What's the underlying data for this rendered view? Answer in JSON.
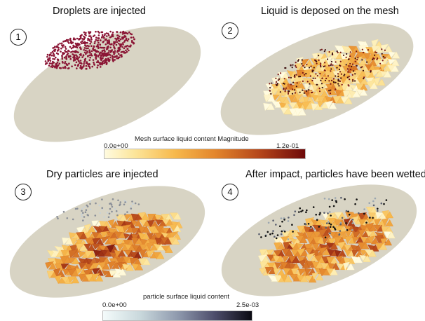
{
  "panels": [
    {
      "number": "1",
      "title": "Droplets are injected"
    },
    {
      "number": "2",
      "title": "Liquid is deposed on the mesh"
    },
    {
      "number": "3",
      "title": "Dry particles are injected"
    },
    {
      "number": "4",
      "title": "After impact, particles have been wetted"
    }
  ],
  "colorbars": {
    "mesh": {
      "title": "Mesh surface liquid content Magnitude",
      "min": "0.0e+00",
      "max": "1.2e-01"
    },
    "particle": {
      "title": "particle surface liquid content",
      "min": "0.0e+00",
      "max": "2.5e-03"
    }
  },
  "colors": {
    "plate": "#d8d4c4",
    "droplet": "#8b1535",
    "mesh_low": "#fce59a",
    "mesh_high": "#6e0a0a",
    "particle_dry": "#c9d2d6",
    "particle_wet": "#111111"
  }
}
